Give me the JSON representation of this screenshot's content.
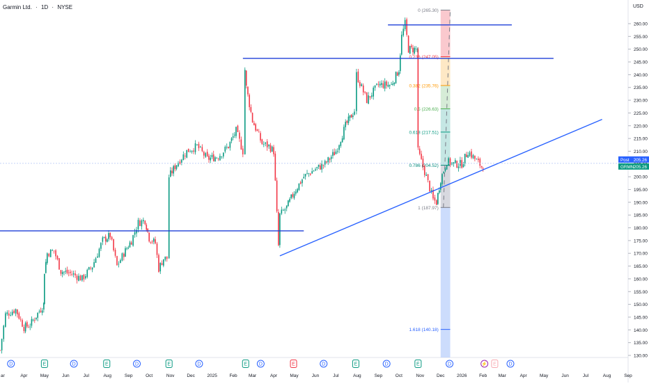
{
  "header": {
    "symbol": "Garmin Ltd.",
    "sep1": "·",
    "interval": "1D",
    "sep2": "·",
    "exchange": "NYSE",
    "currency": "USD"
  },
  "chart_data": {
    "type": "candlestick",
    "ylim": [
      127,
      267
    ],
    "y_ticks": [
      130,
      135,
      140,
      145,
      150,
      155,
      160,
      165,
      170,
      175,
      180,
      185,
      190,
      195,
      200,
      205,
      210,
      215,
      220,
      225,
      230,
      235,
      240,
      245,
      250,
      255,
      260
    ],
    "x_ticks": [
      {
        "label": "ar",
        "date": "2024-03-01"
      },
      {
        "label": "Apr",
        "date": "2024-04-01"
      },
      {
        "label": "May",
        "date": "2024-05-01"
      },
      {
        "label": "Jun",
        "date": "2024-06-01"
      },
      {
        "label": "Jul",
        "date": "2024-07-01"
      },
      {
        "label": "Aug",
        "date": "2024-08-01"
      },
      {
        "label": "Sep",
        "date": "2024-09-01"
      },
      {
        "label": "Oct",
        "date": "2024-10-01"
      },
      {
        "label": "Nov",
        "date": "2024-11-01"
      },
      {
        "label": "Dec",
        "date": "2024-12-01"
      },
      {
        "label": "2025",
        "date": "2025-01-01"
      },
      {
        "label": "Feb",
        "date": "2025-02-01"
      },
      {
        "label": "Mar",
        "date": "2025-03-01"
      },
      {
        "label": "Apr",
        "date": "2025-04-01"
      },
      {
        "label": "May",
        "date": "2025-05-01"
      },
      {
        "label": "Jun",
        "date": "2025-06-01"
      },
      {
        "label": "Jul",
        "date": "2025-07-01"
      },
      {
        "label": "Aug",
        "date": "2025-08-01"
      },
      {
        "label": "Sep",
        "date": "2025-09-01"
      },
      {
        "label": "Oct",
        "date": "2025-10-01"
      },
      {
        "label": "Nov",
        "date": "2025-11-01"
      },
      {
        "label": "Dec",
        "date": "2025-12-01"
      },
      {
        "label": "2026",
        "date": "2026-01-01"
      },
      {
        "label": "Feb",
        "date": "2026-02-01"
      },
      {
        "label": "Mar",
        "date": "2026-03-01"
      },
      {
        "label": "Apr",
        "date": "2026-04-01"
      },
      {
        "label": "May",
        "date": "2026-05-01"
      },
      {
        "label": "Jun",
        "date": "2026-06-01"
      },
      {
        "label": "Jul",
        "date": "2026-07-01"
      },
      {
        "label": "Aug",
        "date": "2026-08-01"
      },
      {
        "label": "Sep",
        "date": "2026-09-01"
      }
    ],
    "price_points": [
      [
        "2024-02-26",
        132
      ],
      [
        "2024-03-05",
        146
      ],
      [
        "2024-03-20",
        148
      ],
      [
        "2024-04-01",
        141
      ],
      [
        "2024-04-10",
        142
      ],
      [
        "2024-04-30",
        150
      ],
      [
        "2024-05-01",
        163
      ],
      [
        "2024-05-05",
        170
      ],
      [
        "2024-05-15",
        171
      ],
      [
        "2024-05-25",
        163
      ],
      [
        "2024-06-10",
        162
      ],
      [
        "2024-06-25",
        160
      ],
      [
        "2024-07-10",
        165
      ],
      [
        "2024-07-25",
        175
      ],
      [
        "2024-08-05",
        177
      ],
      [
        "2024-08-15",
        165
      ],
      [
        "2024-08-25",
        170
      ],
      [
        "2024-09-05",
        175
      ],
      [
        "2024-09-15",
        182
      ],
      [
        "2024-09-25",
        183
      ],
      [
        "2024-10-01",
        176
      ],
      [
        "2024-10-10",
        174
      ],
      [
        "2024-10-15",
        164
      ],
      [
        "2024-10-22",
        168
      ],
      [
        "2024-10-27",
        168
      ],
      [
        "2024-10-30",
        200
      ],
      [
        "2024-11-10",
        205
      ],
      [
        "2024-11-25",
        210
      ],
      [
        "2024-12-10",
        212
      ],
      [
        "2024-12-25",
        207
      ],
      [
        "2025-01-10",
        208
      ],
      [
        "2025-01-25",
        212
      ],
      [
        "2025-02-05",
        218
      ],
      [
        "2025-02-15",
        210
      ],
      [
        "2025-02-18",
        242
      ],
      [
        "2025-02-20",
        235
      ],
      [
        "2025-03-01",
        222
      ],
      [
        "2025-03-15",
        213
      ],
      [
        "2025-03-25",
        212
      ],
      [
        "2025-04-01",
        210
      ],
      [
        "2025-04-08",
        173
      ],
      [
        "2025-04-10",
        185
      ],
      [
        "2025-04-20",
        188
      ],
      [
        "2025-05-01",
        194
      ],
      [
        "2025-05-15",
        200
      ],
      [
        "2025-06-01",
        203
      ],
      [
        "2025-06-15",
        205
      ],
      [
        "2025-07-01",
        210
      ],
      [
        "2025-07-15",
        220
      ],
      [
        "2025-07-28",
        226
      ],
      [
        "2025-07-31",
        240
      ],
      [
        "2025-08-15",
        230
      ],
      [
        "2025-09-01",
        236
      ],
      [
        "2025-09-20",
        236
      ],
      [
        "2025-10-01",
        242
      ],
      [
        "2025-10-05",
        255
      ],
      [
        "2025-10-10",
        260
      ],
      [
        "2025-10-15",
        250
      ],
      [
        "2025-10-28",
        250
      ],
      [
        "2025-10-29",
        210
      ],
      [
        "2025-11-10",
        200
      ],
      [
        "2025-11-20",
        191
      ],
      [
        "2025-11-25",
        190
      ],
      [
        "2025-12-01",
        199
      ],
      [
        "2025-12-10",
        206
      ],
      [
        "2025-12-20",
        205
      ],
      [
        "2026-01-01",
        205
      ],
      [
        "2026-01-10",
        210
      ],
      [
        "2026-01-20",
        207
      ],
      [
        "2026-01-30",
        204
      ],
      [
        "2026-02-03",
        205.26
      ]
    ],
    "horizontal_lines": [
      {
        "price": 259.5,
        "from": "2025-09-15",
        "to": "2026-03-15",
        "color": "#1e3fd8"
      },
      {
        "price": 246.4,
        "from": "2025-02-15",
        "to": "2026-05-15",
        "color": "#1e3fd8"
      },
      {
        "price": 178.8,
        "from": "2024-02-25",
        "to": "2025-05-15",
        "color": "#1e3fd8"
      }
    ],
    "trend_line": {
      "from": [
        "2025-04-10",
        169
      ],
      "to": [
        "2026-07-25",
        222.5
      ],
      "color": "#2962ff"
    },
    "fibonacci": {
      "from_date": "2025-12-01",
      "to_date": "2025-12-15",
      "levels": [
        {
          "ratio": "0",
          "price": 265.3,
          "label": "0 (265.30)",
          "color": "#787b86"
        },
        {
          "ratio": "0.236",
          "price": 247.05,
          "label": "0.236 (247.05)",
          "color": "#f23645"
        },
        {
          "ratio": "0.382",
          "price": 235.76,
          "label": "0.382 (235.76)",
          "color": "#ff9800"
        },
        {
          "ratio": "0.5",
          "price": 226.63,
          "label": "0.5 (226.63)",
          "color": "#4caf50"
        },
        {
          "ratio": "0.618",
          "price": 217.51,
          "label": "0.618 (217.51)",
          "color": "#089981"
        },
        {
          "ratio": "0.786",
          "price": 204.52,
          "label": "0.786 (204.52)",
          "color": "#00897b"
        },
        {
          "ratio": "1",
          "price": 187.97,
          "label": "1 (187.97)",
          "color": "#787b86"
        },
        {
          "ratio": "1.618",
          "price": 140.18,
          "label": "1.618 (140.18)",
          "color": "#2962ff"
        }
      ]
    },
    "last_price": {
      "value": 205.26,
      "post_label": "Post",
      "post_value": "205.26",
      "symbol_label": "GRMN",
      "symbol_value": "205.26",
      "color": "#2962ff",
      "sym_color": "#089981"
    },
    "events": [
      {
        "type": "D",
        "date": "2024-03-13"
      },
      {
        "type": "E",
        "date": "2024-05-01"
      },
      {
        "type": "D",
        "date": "2024-06-13"
      },
      {
        "type": "E",
        "date": "2024-07-31"
      },
      {
        "type": "D",
        "date": "2024-09-13"
      },
      {
        "type": "E",
        "date": "2024-10-30"
      },
      {
        "type": "D",
        "date": "2024-12-13"
      },
      {
        "type": "E",
        "date": "2025-02-19"
      },
      {
        "type": "D",
        "date": "2025-03-13"
      },
      {
        "type": "E",
        "date": "2025-04-30"
      },
      {
        "type": "D",
        "date": "2025-06-13"
      },
      {
        "type": "E",
        "date": "2025-07-30"
      },
      {
        "type": "D",
        "date": "2025-09-13"
      },
      {
        "type": "E",
        "date": "2025-10-29"
      },
      {
        "type": "D",
        "date": "2025-12-14"
      },
      {
        "type": "S",
        "date": "2026-02-03"
      },
      {
        "type": "E",
        "date": "2026-02-18"
      },
      {
        "type": "D",
        "date": "2026-03-13"
      }
    ],
    "event_colors": {
      "D": "#2962ff",
      "E": "#089981",
      "E_red": "#f23645",
      "E_future": "#f7a9b0",
      "S": "#9c27b0"
    },
    "up_color": "#089981",
    "down_color": "#f23645"
  }
}
